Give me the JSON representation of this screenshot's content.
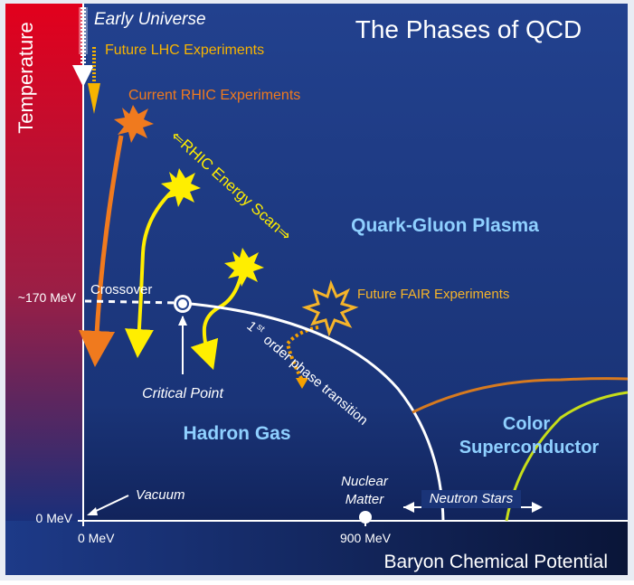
{
  "title": "The Phases of QCD",
  "axes": {
    "y_label": "Temperature",
    "x_label": "Baryon Chemical Potential",
    "y_ticks": [
      "~170 MeV",
      "0 MeV"
    ],
    "x_ticks": [
      "0 MeV",
      "900 MeV"
    ]
  },
  "labels": {
    "early_universe": "Early Universe",
    "future_lhc": "Future LHC Experiments",
    "current_rhic": "Current RHIC Experiments",
    "rhic_energy_scan": "⇐RHIC Energy Scan⇒",
    "qgp": "Quark-Gluon Plasma",
    "future_fair": "Future FAIR Experiments",
    "crossover": "Crossover",
    "first_order_sup": "st",
    "first_order_one": "1",
    "first_order_rest": "order phase transition",
    "critical_point": "Critical Point",
    "hadron_gas": "Hadron Gas",
    "color_sc_line1": "Color",
    "color_sc_line2": "Superconductor",
    "vacuum": "Vacuum",
    "nuclear_line1": "Nuclear",
    "nuclear_line2": "Matter",
    "neutron_stars": "Neutron Stars"
  },
  "colors": {
    "background_top": "#22418e",
    "background_bottom": "#0d1c4e",
    "temp_bar_top": "#e2001c",
    "temp_bar_bottom": "#1a2f7a",
    "title": "#ffffff",
    "phase_region": "#8fd0ff",
    "lhc": "#f7b400",
    "rhic": "#f07a1e",
    "energy_scan": "#ffee00",
    "fair": "#f5b42a",
    "transition_line": "#ffffff",
    "csc_line_orange": "#d77a1f",
    "csc_line_green": "#c6dd1a"
  }
}
